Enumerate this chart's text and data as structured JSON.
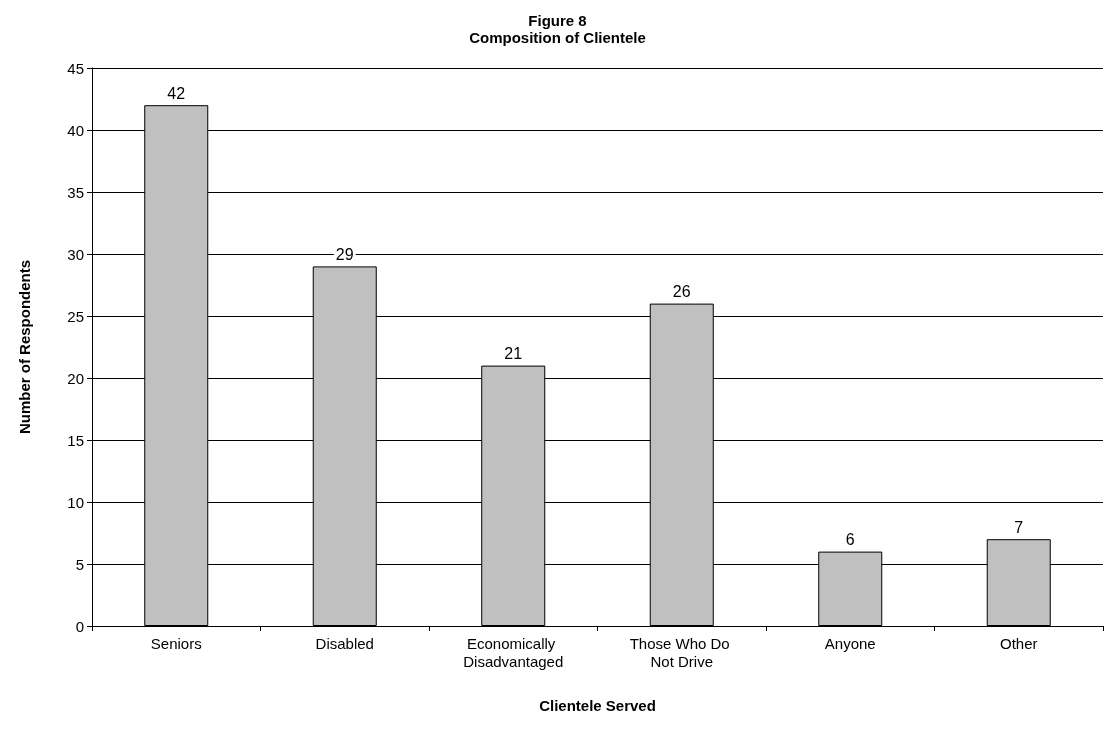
{
  "chart_data": {
    "type": "bar",
    "title": "Figure 8",
    "subtitle": "Composition of Clientele",
    "xlabel": "Clientele Served",
    "ylabel": "Number of Respondents",
    "categories": [
      "Seniors",
      "Disabled",
      "Economically Disadvantaged",
      "Those Who Do Not Drive",
      "Anyone",
      "Other"
    ],
    "values": [
      42,
      29,
      21,
      26,
      6,
      7
    ],
    "color": "#c0c0c0",
    "ylim": [
      0,
      45
    ],
    "yticks": [
      0,
      5,
      10,
      15,
      20,
      25,
      30,
      35,
      40,
      45
    ],
    "grid": "y",
    "data_labels": true
  }
}
